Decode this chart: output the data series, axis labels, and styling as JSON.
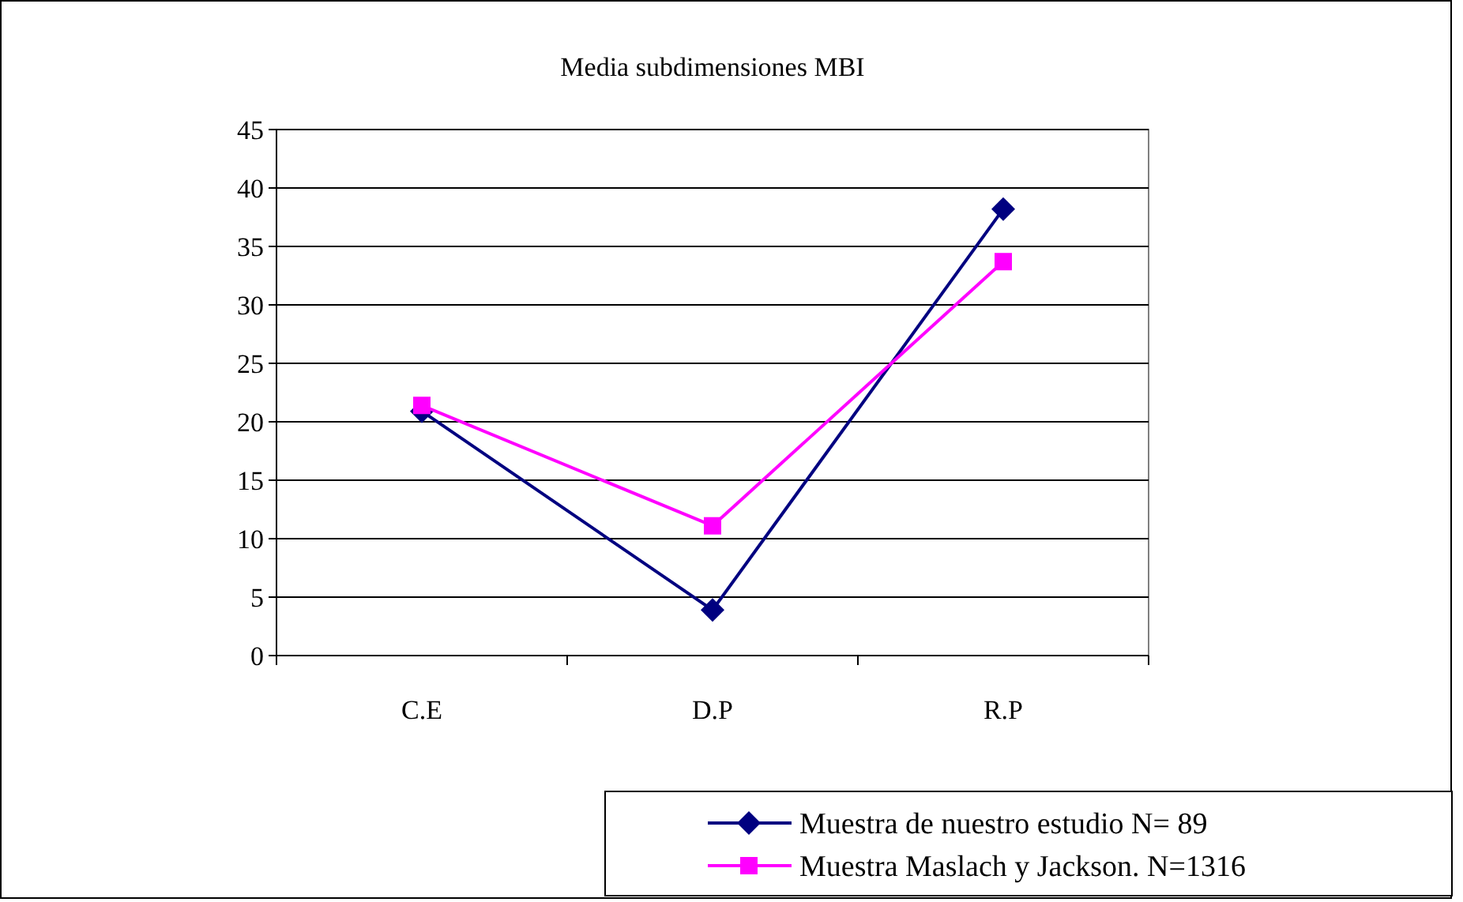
{
  "chart_data": {
    "type": "line",
    "title": "Media subdimensiones MBI",
    "categories": [
      "C.E",
      "D.P",
      "R.P"
    ],
    "series": [
      {
        "name": "Muestra de nuestro estudio  N= 89",
        "color": "#000080",
        "marker": "diamond",
        "values": [
          20.9,
          3.9,
          38.2
        ]
      },
      {
        "name": "Muestra Maslach y Jackson.  N=1316",
        "color": "#ff00ff",
        "marker": "square",
        "values": [
          21.4,
          11.1,
          33.7
        ]
      }
    ],
    "ylim": [
      0,
      45
    ],
    "yticks": [
      0,
      5,
      10,
      15,
      20,
      25,
      30,
      35,
      40,
      45
    ],
    "grid": "y",
    "legend": "bottom right"
  }
}
